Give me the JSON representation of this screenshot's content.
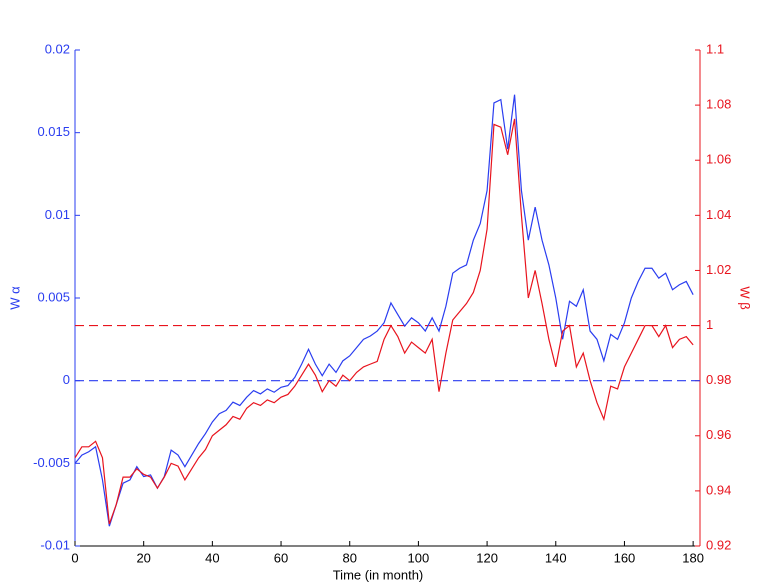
{
  "chart_data": {
    "type": "line",
    "xlabel": "Time (in month)",
    "ylabel": "W α",
    "y2label": "W β",
    "x": [
      0,
      2,
      4,
      6,
      8,
      10,
      12,
      14,
      16,
      18,
      20,
      22,
      24,
      26,
      28,
      30,
      32,
      34,
      36,
      38,
      40,
      42,
      44,
      46,
      48,
      50,
      52,
      54,
      56,
      58,
      60,
      62,
      64,
      66,
      68,
      70,
      72,
      74,
      76,
      78,
      80,
      82,
      84,
      86,
      88,
      90,
      92,
      94,
      96,
      98,
      100,
      102,
      104,
      106,
      108,
      110,
      112,
      114,
      116,
      118,
      120,
      122,
      124,
      126,
      128,
      130,
      132,
      134,
      136,
      138,
      140,
      142,
      144,
      146,
      148,
      150,
      152,
      154,
      156,
      158,
      160,
      162,
      164,
      166,
      168,
      170,
      172,
      174,
      176,
      178,
      180
    ],
    "series": [
      {
        "name": "W α",
        "color": "#2a3df0",
        "axis": "y",
        "values": [
          -0.005,
          -0.0045,
          -0.0043,
          -0.004,
          -0.006,
          -0.0088,
          -0.0075,
          -0.0062,
          -0.006,
          -0.0052,
          -0.0058,
          -0.0057,
          -0.0065,
          -0.0058,
          -0.0042,
          -0.0045,
          -0.0052,
          -0.0045,
          -0.0038,
          -0.0032,
          -0.0025,
          -0.002,
          -0.0018,
          -0.0013,
          -0.0015,
          -0.001,
          -0.0006,
          -0.0008,
          -0.0005,
          -0.0007,
          -0.0004,
          -0.0003,
          0.0002,
          0.001,
          0.0019,
          0.001,
          0.0003,
          0.001,
          0.0005,
          0.0012,
          0.0015,
          0.002,
          0.0025,
          0.0027,
          0.003,
          0.0035,
          0.0047,
          0.004,
          0.0033,
          0.0038,
          0.0035,
          0.003,
          0.0038,
          0.003,
          0.0045,
          0.0065,
          0.0068,
          0.007,
          0.0085,
          0.0095,
          0.0115,
          0.0168,
          0.017,
          0.014,
          0.0173,
          0.0115,
          0.0085,
          0.0105,
          0.0085,
          0.007,
          0.005,
          0.0025,
          0.0048,
          0.0045,
          0.0055,
          0.003,
          0.0025,
          0.0012,
          0.0028,
          0.0025,
          0.0035,
          0.005,
          0.006,
          0.0068,
          0.0068,
          0.0062,
          0.0065,
          0.0055,
          0.0058,
          0.006,
          0.0052
        ]
      },
      {
        "name": "W β",
        "color": "#e8141e",
        "axis": "y2",
        "values": [
          0.952,
          0.956,
          0.956,
          0.958,
          0.952,
          0.928,
          0.935,
          0.945,
          0.945,
          0.948,
          0.946,
          0.945,
          0.941,
          0.945,
          0.95,
          0.949,
          0.944,
          0.948,
          0.952,
          0.955,
          0.96,
          0.962,
          0.964,
          0.967,
          0.966,
          0.97,
          0.972,
          0.971,
          0.973,
          0.972,
          0.974,
          0.975,
          0.978,
          0.982,
          0.986,
          0.982,
          0.976,
          0.98,
          0.978,
          0.982,
          0.98,
          0.983,
          0.985,
          0.986,
          0.987,
          0.995,
          1.0,
          0.996,
          0.99,
          0.994,
          0.992,
          0.99,
          0.995,
          0.976,
          0.99,
          1.002,
          1.005,
          1.008,
          1.012,
          1.02,
          1.035,
          1.073,
          1.072,
          1.062,
          1.075,
          1.04,
          1.01,
          1.02,
          1.008,
          0.995,
          0.985,
          0.998,
          1.0,
          0.985,
          0.99,
          0.98,
          0.972,
          0.966,
          0.978,
          0.977,
          0.985,
          0.99,
          0.995,
          1.0,
          1.0,
          0.996,
          1.0,
          0.992,
          0.995,
          0.996,
          0.993
        ]
      }
    ],
    "reference_lines": [
      {
        "value": 0,
        "axis": "y",
        "color": "#2a3df0"
      },
      {
        "value": 1,
        "axis": "y2",
        "color": "#e8141e"
      }
    ],
    "xlim": [
      0,
      182
    ],
    "xticks": [
      0,
      20,
      40,
      60,
      80,
      100,
      120,
      140,
      160,
      180
    ],
    "ylim": [
      -0.01,
      0.02
    ],
    "yticks": [
      -0.01,
      -0.005,
      0,
      0.005,
      0.01,
      0.015,
      0.02
    ],
    "y2lim": [
      0.92,
      1.1
    ],
    "y2ticks": [
      0.92,
      0.94,
      0.96,
      0.98,
      1,
      1.02,
      1.04,
      1.06,
      1.08,
      1.1
    ]
  }
}
